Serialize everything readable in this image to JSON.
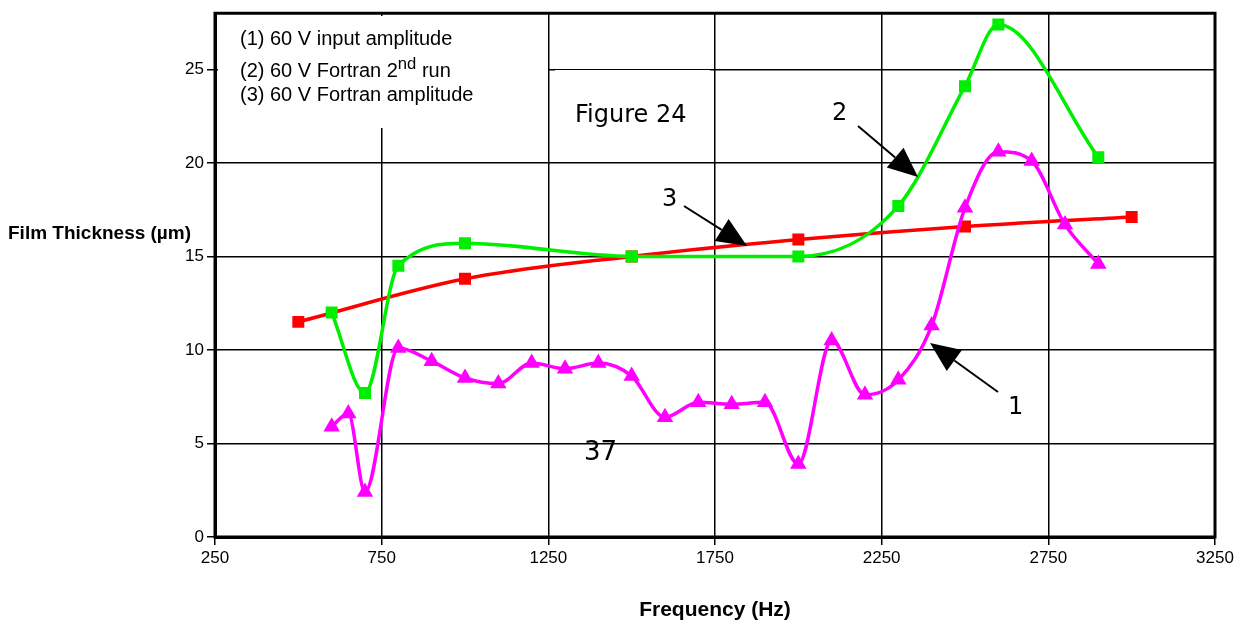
{
  "chart_data": {
    "type": "line",
    "xlabel": "Frequency (Hz)",
    "ylabel": "Film Thickness (µm)",
    "xlim": [
      250,
      3250
    ],
    "xticks": [
      250,
      750,
      1250,
      1750,
      2250,
      2750,
      3250
    ],
    "ylim": [
      0,
      28
    ],
    "yticks": [
      0,
      5,
      10,
      15,
      20,
      25
    ],
    "grid": true,
    "legend": false,
    "series": [
      {
        "color": "#ff00ff",
        "marker": "triangle",
        "x": [
          600,
          650,
          700,
          800,
          900,
          1000,
          1100,
          1200,
          1300,
          1400,
          1500,
          1600,
          1700,
          1800,
          1900,
          2000,
          2100,
          2200,
          2300,
          2400,
          2500,
          2600,
          2700,
          2800,
          2900
        ],
        "values": [
          5.9,
          6.6,
          2.4,
          10.1,
          9.4,
          8.5,
          8.2,
          9.3,
          9.0,
          9.3,
          8.6,
          6.4,
          7.2,
          7.1,
          7.2,
          3.9,
          10.5,
          7.6,
          8.4,
          11.3,
          17.6,
          20.6,
          20.1,
          16.7,
          14.6
        ]
      },
      {
        "color": "#00ee00",
        "marker": "square",
        "x": [
          600,
          700,
          800,
          1000,
          1500,
          2000,
          2300,
          2500,
          2600,
          2900
        ],
        "values": [
          12.0,
          7.7,
          14.5,
          15.7,
          15.0,
          15.0,
          17.7,
          24.1,
          27.4,
          20.3
        ]
      },
      {
        "color": "#ff0000",
        "marker": "square",
        "x": [
          500,
          1000,
          1500,
          2000,
          2500,
          3000
        ],
        "values": [
          11.5,
          13.8,
          15.0,
          15.9,
          16.6,
          17.1
        ]
      }
    ],
    "annotations": [
      "(1) 60 V input amplitude",
      "(2) 60 V Fortran 2$^{nd}$ run",
      "(3) 60 V Fortran amplitude",
      "Figure 24",
      "37",
      "1",
      "2",
      "3"
    ]
  }
}
